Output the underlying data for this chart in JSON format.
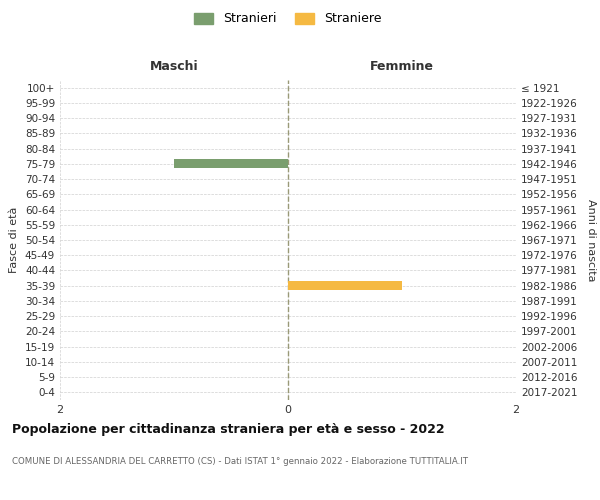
{
  "age_groups": [
    "0-4",
    "5-9",
    "10-14",
    "15-19",
    "20-24",
    "25-29",
    "30-34",
    "35-39",
    "40-44",
    "45-49",
    "50-54",
    "55-59",
    "60-64",
    "65-69",
    "70-74",
    "75-79",
    "80-84",
    "85-89",
    "90-94",
    "95-99",
    "100+"
  ],
  "birth_years": [
    "2017-2021",
    "2012-2016",
    "2007-2011",
    "2002-2006",
    "1997-2001",
    "1992-1996",
    "1987-1991",
    "1982-1986",
    "1977-1981",
    "1972-1976",
    "1967-1971",
    "1962-1966",
    "1957-1961",
    "1952-1956",
    "1947-1951",
    "1942-1946",
    "1937-1941",
    "1932-1936",
    "1927-1931",
    "1922-1926",
    "≤ 1921"
  ],
  "males": [
    0,
    0,
    0,
    0,
    0,
    0,
    0,
    0,
    0,
    0,
    0,
    0,
    0,
    0,
    0,
    1,
    0,
    0,
    0,
    0,
    0
  ],
  "females": [
    0,
    0,
    0,
    0,
    0,
    0,
    0,
    1,
    0,
    0,
    0,
    0,
    0,
    0,
    0,
    0,
    0,
    0,
    0,
    0,
    0
  ],
  "male_color": "#7a9e6e",
  "female_color": "#f5b942",
  "xlim": 2,
  "title": "Popolazione per cittadinanza straniera per età e sesso - 2022",
  "subtitle": "COMUNE DI ALESSANDRIA DEL CARRETTO (CS) - Dati ISTAT 1° gennaio 2022 - Elaborazione TUTTITALIA.IT",
  "ylabel_left": "Fasce di età",
  "ylabel_right": "Anni di nascita",
  "legend_male": "Stranieri",
  "legend_female": "Straniere",
  "header_male": "Maschi",
  "header_female": "Femmine",
  "bg_color": "#ffffff",
  "grid_color": "#d0d0d0"
}
